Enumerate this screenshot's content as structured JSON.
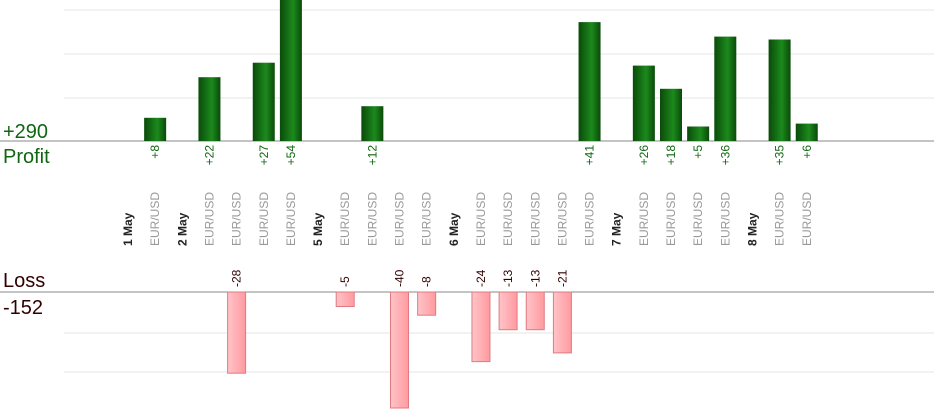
{
  "summary": {
    "profit_value": "+290",
    "profit_word": "Profit",
    "loss_word": "Loss",
    "loss_value": "-152"
  },
  "colors": {
    "profit_text": "#116611",
    "profit_bar_dark": "#0a4a0a",
    "profit_bar_light": "#1c8a1c",
    "loss_text": "#330000",
    "loss_bar": "#ffb0b4",
    "loss_bar_border": "#e07a80",
    "day_label": "#222222",
    "pair_label": "#999999",
    "grid": "#e6e6e6",
    "axis": "#888888"
  },
  "chart_data": {
    "type": "bar",
    "title": "",
    "xlabel": "",
    "ylabel": "",
    "ylim_profit": [
      0,
      48
    ],
    "ylim_loss": [
      -40,
      0
    ],
    "grid": true,
    "legend": "none",
    "categories": [
      "1 May",
      "EUR/USD",
      "2 May",
      "EUR/USD",
      "EUR/USD",
      "EUR/USD",
      "EUR/USD",
      "5 May",
      "EUR/USD",
      "EUR/USD",
      "EUR/USD",
      "EUR/USD",
      "6 May",
      "EUR/USD",
      "EUR/USD",
      "EUR/USD",
      "EUR/USD",
      "EUR/USD",
      "7 May",
      "EUR/USD",
      "EUR/USD",
      "EUR/USD",
      "EUR/USD",
      "8 May",
      "EUR/USD",
      "EUR/USD"
    ],
    "category_kind": [
      "day",
      "pair",
      "day",
      "pair",
      "pair",
      "pair",
      "pair",
      "day",
      "pair",
      "pair",
      "pair",
      "pair",
      "day",
      "pair",
      "pair",
      "pair",
      "pair",
      "pair",
      "day",
      "pair",
      "pair",
      "pair",
      "pair",
      "day",
      "pair",
      "pair"
    ],
    "series": [
      {
        "name": "Profit",
        "values": [
          null,
          8,
          null,
          22,
          null,
          27,
          54,
          null,
          null,
          12,
          null,
          null,
          null,
          null,
          null,
          null,
          null,
          41,
          null,
          26,
          18,
          5,
          36,
          null,
          35,
          6
        ],
        "labels": [
          "",
          "+8",
          "",
          "+22",
          "",
          "+27",
          "+54",
          "",
          "",
          "+12",
          "",
          "",
          "",
          "",
          "",
          "",
          "",
          "+41",
          "",
          "+26",
          "+18",
          "+5",
          "+36",
          "",
          "+35",
          "+6"
        ]
      },
      {
        "name": "Loss",
        "values": [
          null,
          null,
          null,
          null,
          -28,
          null,
          null,
          null,
          -5,
          null,
          -40,
          -8,
          null,
          -24,
          -13,
          -13,
          -21,
          null,
          null,
          null,
          null,
          null,
          null,
          null,
          null,
          null
        ],
        "labels": [
          "",
          "",
          "",
          "",
          "-28",
          "",
          "",
          "",
          "-5",
          "",
          "-40",
          "-8",
          "",
          "-24",
          "-13",
          "-13",
          "-21",
          "",
          "",
          "",
          "",
          "",
          "",
          "",
          "",
          ""
        ]
      }
    ]
  }
}
